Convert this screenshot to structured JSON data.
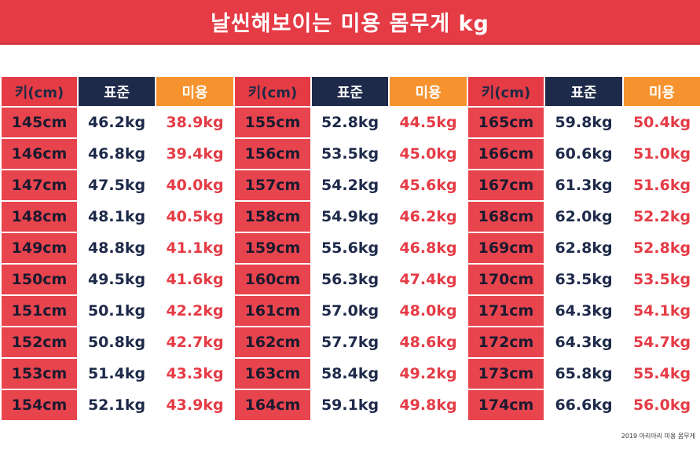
{
  "title": "날씬해보이는 미용 몸무게 kg",
  "headers": {
    "height": "키(cm)",
    "standard": "표준",
    "beauty": "미용"
  },
  "footer": "2019 아리아리 미용 몸무게",
  "colors": {
    "red": "#e53b45",
    "navy": "#1e2a4a",
    "orange": "#f6932f"
  },
  "rows": [
    {
      "h1": "145cm",
      "s1": "46.2kg",
      "b1": "38.9kg",
      "h2": "155cm",
      "s2": "52.8kg",
      "b2": "44.5kg",
      "h3": "165cm",
      "s3": "59.8kg",
      "b3": "50.4kg"
    },
    {
      "h1": "146cm",
      "s1": "46.8kg",
      "b1": "39.4kg",
      "h2": "156cm",
      "s2": "53.5kg",
      "b2": "45.0kg",
      "h3": "166cm",
      "s3": "60.6kg",
      "b3": "51.0kg"
    },
    {
      "h1": "147cm",
      "s1": "47.5kg",
      "b1": "40.0kg",
      "h2": "157cm",
      "s2": "54.2kg",
      "b2": "45.6kg",
      "h3": "167cm",
      "s3": "61.3kg",
      "b3": "51.6kg"
    },
    {
      "h1": "148cm",
      "s1": "48.1kg",
      "b1": "40.5kg",
      "h2": "158cm",
      "s2": "54.9kg",
      "b2": "46.2kg",
      "h3": "168cm",
      "s3": "62.0kg",
      "b3": "52.2kg"
    },
    {
      "h1": "149cm",
      "s1": "48.8kg",
      "b1": "41.1kg",
      "h2": "159cm",
      "s2": "55.6kg",
      "b2": "46.8kg",
      "h3": "169cm",
      "s3": "62.8kg",
      "b3": "52.8kg"
    },
    {
      "h1": "150cm",
      "s1": "49.5kg",
      "b1": "41.6kg",
      "h2": "160cm",
      "s2": "56.3kg",
      "b2": "47.4kg",
      "h3": "170cm",
      "s3": "63.5kg",
      "b3": "53.5kg"
    },
    {
      "h1": "151cm",
      "s1": "50.1kg",
      "b1": "42.2kg",
      "h2": "161cm",
      "s2": "57.0kg",
      "b2": "48.0kg",
      "h3": "171cm",
      "s3": "64.3kg",
      "b3": "54.1kg"
    },
    {
      "h1": "152cm",
      "s1": "50.8kg",
      "b1": "42.7kg",
      "h2": "162cm",
      "s2": "57.7kg",
      "b2": "48.6kg",
      "h3": "172cm",
      "s3": "64.3kg",
      "b3": "54.7kg"
    },
    {
      "h1": "153cm",
      "s1": "51.4kg",
      "b1": "43.3kg",
      "h2": "163cm",
      "s2": "58.4kg",
      "b2": "49.2kg",
      "h3": "173cm",
      "s3": "65.8kg",
      "b3": "55.4kg"
    },
    {
      "h1": "154cm",
      "s1": "52.1kg",
      "b1": "43.9kg",
      "h2": "164cm",
      "s2": "59.1kg",
      "b2": "49.8kg",
      "h3": "174cm",
      "s3": "66.6kg",
      "b3": "56.0kg"
    }
  ]
}
